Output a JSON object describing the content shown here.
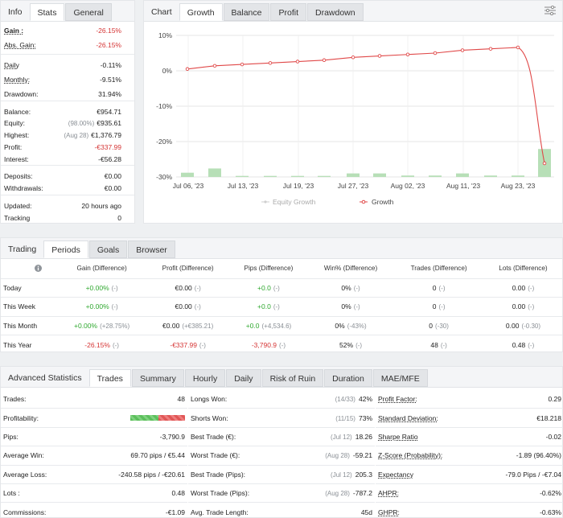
{
  "info": {
    "tabs": [
      "Info",
      "Stats",
      "General"
    ],
    "rows": [
      {
        "label": "Gain :",
        "value": "-26.15%",
        "neg": true,
        "u": true,
        "bold": true
      },
      {
        "label": "Abs. Gain:",
        "value": "-26.15%",
        "neg": true,
        "u": true
      },
      {
        "label": "Daily",
        "value": "-0.11%",
        "u": true
      },
      {
        "label": "Monthly:",
        "value": "-9.51%",
        "u": true
      },
      {
        "label": "Drawdown:",
        "value": "31.94%"
      },
      {
        "label": "Balance:",
        "value": "€954.71"
      },
      {
        "label": "Equity:",
        "note": "(98.00%)",
        "value": "€935.61"
      },
      {
        "label": "Highest:",
        "note": "(Aug 28)",
        "value": "€1,376.79"
      },
      {
        "label": "Profit:",
        "value": "-€337.99",
        "neg": true
      },
      {
        "label": "Interest:",
        "value": "-€56.28"
      },
      {
        "label": "Deposits:",
        "value": "€0.00"
      },
      {
        "label": "Withdrawals:",
        "value": "€0.00"
      },
      {
        "label": "Updated:",
        "value": "20 hours ago"
      },
      {
        "label": "Tracking",
        "value": "0"
      }
    ]
  },
  "chart": {
    "tabs": [
      "Chart",
      "Growth",
      "Balance",
      "Profit",
      "Drawdown"
    ],
    "settings_icon": "sliders-icon",
    "legend": [
      "Equity Growth",
      "Growth"
    ],
    "colors": {
      "line": "#e04848",
      "bar": "#b7dfb7",
      "grid": "#e6e6e6"
    }
  },
  "chart_data": {
    "type": "line",
    "x_labels": [
      "Jul 06, '23",
      "Jul 13, '23",
      "Jul 19, '23",
      "Jul 27, '23",
      "Aug 02, '23",
      "Aug 11, '23",
      "Aug 23, '23"
    ],
    "y_ticks": [
      "10%",
      "0%",
      "-10%",
      "-20%",
      "-30%"
    ],
    "ylim": [
      -30,
      10
    ],
    "series": [
      {
        "name": "Growth",
        "type": "line",
        "values": [
          0.5,
          1.4,
          1.8,
          2.2,
          2.6,
          3.0,
          3.8,
          4.2,
          4.6,
          5.0,
          5.8,
          6.2,
          6.6,
          -26.15
        ]
      },
      {
        "name": "Equity Growth",
        "type": "bar",
        "values": [
          1.2,
          2.4,
          0.3,
          0.3,
          0.3,
          0.3,
          1.0,
          1.0,
          0.4,
          0.4,
          1.0,
          0.4,
          0.4,
          7.9
        ]
      }
    ]
  },
  "periods": {
    "tabs": [
      "Trading",
      "Periods",
      "Goals",
      "Browser"
    ],
    "headers": [
      "Gain (Difference)",
      "Profit (Difference)",
      "Pips (Difference)",
      "Win% (Difference)",
      "Trades (Difference)",
      "Lots (Difference)"
    ],
    "rows": [
      {
        "name": "Today",
        "cells": [
          [
            "+0.00%",
            "(-)",
            "pos"
          ],
          [
            "€0.00",
            "(-)",
            ""
          ],
          [
            "+0.0",
            "(-)",
            "pos"
          ],
          [
            "0%",
            "(-)",
            ""
          ],
          [
            "0",
            "(-)",
            ""
          ],
          [
            "0.00",
            "(-)",
            ""
          ]
        ]
      },
      {
        "name": "This Week",
        "cells": [
          [
            "+0.00%",
            "(-)",
            "pos"
          ],
          [
            "€0.00",
            "(-)",
            ""
          ],
          [
            "+0.0",
            "(-)",
            "pos"
          ],
          [
            "0%",
            "(-)",
            ""
          ],
          [
            "0",
            "(-)",
            ""
          ],
          [
            "0.00",
            "(-)",
            ""
          ]
        ]
      },
      {
        "name": "This Month",
        "cells": [
          [
            "+0.00%",
            "(+28.75%)",
            "pos"
          ],
          [
            "€0.00",
            "(+€385.21)",
            ""
          ],
          [
            "+0.0",
            "(+4,534.6)",
            "pos"
          ],
          [
            "0%",
            "(-43%)",
            ""
          ],
          [
            "0",
            "(-30)",
            ""
          ],
          [
            "0.00",
            "(-0.30)",
            ""
          ]
        ]
      },
      {
        "name": "This Year",
        "cells": [
          [
            "-26.15%",
            "(-)",
            "neg"
          ],
          [
            "-€337.99",
            "(-)",
            "neg"
          ],
          [
            "-3,790.9",
            "(-)",
            "neg"
          ],
          [
            "52%",
            "(-)",
            ""
          ],
          [
            "48",
            "(-)",
            ""
          ],
          [
            "0.48",
            "(-)",
            ""
          ]
        ]
      }
    ]
  },
  "advanced": {
    "tabs": [
      "Advanced Statistics",
      "Trades",
      "Summary",
      "Hourly",
      "Daily",
      "Risk of Ruin",
      "Duration",
      "MAE/MFE"
    ],
    "col1": [
      {
        "label": "Trades:",
        "value": "48"
      },
      {
        "label": "Profitability:",
        "value": "",
        "bar": true,
        "win_fraction": 0.52
      },
      {
        "label": "Pips:",
        "value": "-3,790.9"
      },
      {
        "label": "Average Win:",
        "value": "69.70 pips / €5.44"
      },
      {
        "label": "Average Loss:",
        "value": "-240.58 pips / -€20.61"
      },
      {
        "label": "Lots :",
        "value": "0.48"
      },
      {
        "label": "Commissions:",
        "value": "-€1.09"
      }
    ],
    "col2": [
      {
        "label": "Longs Won:",
        "note": "(14/33)",
        "value": "42%"
      },
      {
        "label": "Shorts Won:",
        "note": "(11/15)",
        "value": "73%"
      },
      {
        "label": "Best Trade (€):",
        "note": "(Jul 12)",
        "value": "18.26"
      },
      {
        "label": "Worst Trade (€):",
        "note": "(Aug 28)",
        "value": "-59.21"
      },
      {
        "label": "Best Trade (Pips):",
        "note": "(Jul 12)",
        "value": "205.3"
      },
      {
        "label": "Worst Trade (Pips):",
        "note": "(Aug 28)",
        "value": "-787.2"
      },
      {
        "label": "Avg. Trade Length:",
        "note": "",
        "value": "45d"
      }
    ],
    "col3": [
      {
        "label": "Profit Factor:",
        "value": "0.29",
        "u": true
      },
      {
        "label": "Standard Deviation:",
        "value": "€18.218",
        "u": true
      },
      {
        "label": "Sharpe Ratio",
        "value": "-0.02",
        "u": true
      },
      {
        "label": "Z-Score (Probability):",
        "value": "-1.89 (96.40%)",
        "u": true
      },
      {
        "label": "Expectancy",
        "value": "-79.0 Pips / -€7.04",
        "u": true
      },
      {
        "label": "AHPR:",
        "value": "-0.62%",
        "u": true
      },
      {
        "label": "GHPR:",
        "value": "-0.63%",
        "u": true
      }
    ]
  }
}
